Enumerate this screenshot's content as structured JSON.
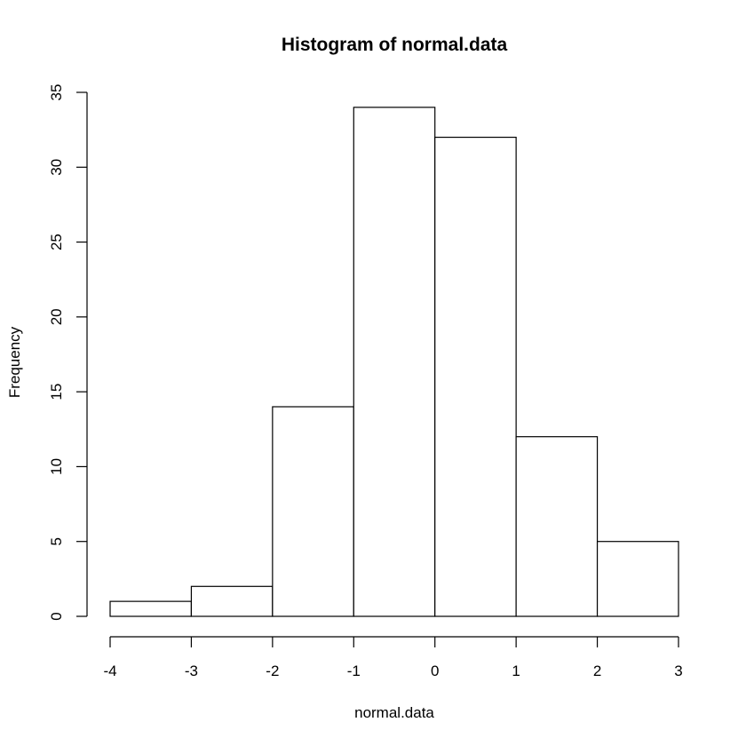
{
  "chart_data": {
    "type": "bar",
    "title": "Histogram of normal.data",
    "xlabel": "normal.data",
    "ylabel": "Frequency",
    "bins": [
      {
        "from": -4,
        "to": -3,
        "count": 1
      },
      {
        "from": -3,
        "to": -2,
        "count": 2
      },
      {
        "from": -2,
        "to": -1,
        "count": 14
      },
      {
        "from": -1,
        "to": 0,
        "count": 34
      },
      {
        "from": 0,
        "to": 1,
        "count": 32
      },
      {
        "from": 1,
        "to": 2,
        "count": 12
      },
      {
        "from": 2,
        "to": 3,
        "count": 5
      }
    ],
    "xticks": [
      "-4",
      "-3",
      "-2",
      "-1",
      "0",
      "1",
      "2",
      "3"
    ],
    "yticks": [
      "0",
      "5",
      "10",
      "15",
      "20",
      "25",
      "30",
      "35"
    ],
    "xlim": [
      -4,
      3
    ],
    "ylim": [
      0,
      35
    ],
    "grid": false,
    "bar_fill": "#ffffff",
    "bar_stroke": "#000000"
  }
}
